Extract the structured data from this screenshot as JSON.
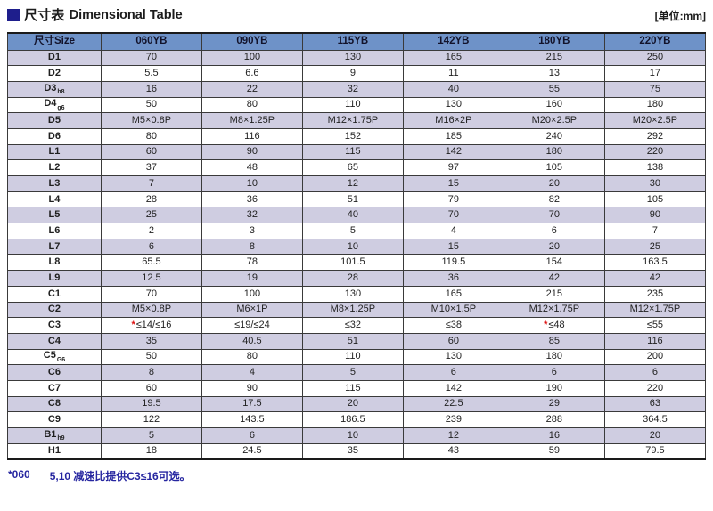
{
  "page": {
    "title_zh": "尺寸表",
    "title_en": "Dimensional Table",
    "unit_label": "[单位:mm]",
    "footnote_marker": "*060",
    "footnote_text": "5,10 减速比提供C3≤16可选。"
  },
  "colors": {
    "header_bg": "#6e92c8",
    "row_alt_bg": "#cfcde1",
    "title_square_navy": "#1e1e8c",
    "footnote_blue": "#2626a0",
    "asterisk_red": "#dd1111"
  },
  "table": {
    "columns": [
      "尺寸Size",
      "060YB",
      "090YB",
      "115YB",
      "142YB",
      "180YB",
      "220YB"
    ],
    "rows": [
      {
        "label": "D1",
        "sub": "",
        "values": [
          "70",
          "100",
          "130",
          "165",
          "215",
          "250"
        ]
      },
      {
        "label": "D2",
        "sub": "",
        "values": [
          "5.5",
          "6.6",
          "9",
          "11",
          "13",
          "17"
        ]
      },
      {
        "label": "D3",
        "sub": "h8",
        "values": [
          "16",
          "22",
          "32",
          "40",
          "55",
          "75"
        ]
      },
      {
        "label": "D4",
        "sub": "g6",
        "values": [
          "50",
          "80",
          "110",
          "130",
          "160",
          "180"
        ]
      },
      {
        "label": "D5",
        "sub": "",
        "values": [
          "M5×0.8P",
          "M8×1.25P",
          "M12×1.75P",
          "M16×2P",
          "M20×2.5P",
          "M20×2.5P"
        ]
      },
      {
        "label": "D6",
        "sub": "",
        "values": [
          "80",
          "116",
          "152",
          "185",
          "240",
          "292"
        ]
      },
      {
        "label": "L1",
        "sub": "",
        "values": [
          "60",
          "90",
          "115",
          "142",
          "180",
          "220"
        ]
      },
      {
        "label": "L2",
        "sub": "",
        "values": [
          "37",
          "48",
          "65",
          "97",
          "105",
          "138"
        ]
      },
      {
        "label": "L3",
        "sub": "",
        "values": [
          "7",
          "10",
          "12",
          "15",
          "20",
          "30"
        ]
      },
      {
        "label": "L4",
        "sub": "",
        "values": [
          "28",
          "36",
          "51",
          "79",
          "82",
          "105"
        ]
      },
      {
        "label": "L5",
        "sub": "",
        "values": [
          "25",
          "32",
          "40",
          "70",
          "70",
          "90"
        ]
      },
      {
        "label": "L6",
        "sub": "",
        "values": [
          "2",
          "3",
          "5",
          "4",
          "6",
          "7"
        ]
      },
      {
        "label": "L7",
        "sub": "",
        "values": [
          "6",
          "8",
          "10",
          "15",
          "20",
          "25"
        ]
      },
      {
        "label": "L8",
        "sub": "",
        "values": [
          "65.5",
          "78",
          "101.5",
          "119.5",
          "154",
          "163.5"
        ]
      },
      {
        "label": "L9",
        "sub": "",
        "values": [
          "12.5",
          "19",
          "28",
          "36",
          "42",
          "42"
        ]
      },
      {
        "label": "C1",
        "sub": "",
        "values": [
          "70",
          "100",
          "130",
          "165",
          "215",
          "235"
        ]
      },
      {
        "label": "C2",
        "sub": "",
        "values": [
          "M5×0.8P",
          "M6×1P",
          "M8×1.25P",
          "M10×1.5P",
          "M12×1.75P",
          "M12×1.75P"
        ]
      },
      {
        "label": "C3",
        "sub": "",
        "values": [
          "*≤14/≤16",
          "≤19/≤24",
          "≤32",
          "≤38",
          "*≤48",
          "≤55"
        ]
      },
      {
        "label": "C4",
        "sub": "",
        "values": [
          "35",
          "40.5",
          "51",
          "60",
          "85",
          "116"
        ]
      },
      {
        "label": "C5",
        "sub": "G6",
        "values": [
          "50",
          "80",
          "110",
          "130",
          "180",
          "200"
        ]
      },
      {
        "label": "C6",
        "sub": "",
        "values": [
          "8",
          "4",
          "5",
          "6",
          "6",
          "6"
        ]
      },
      {
        "label": "C7",
        "sub": "",
        "values": [
          "60",
          "90",
          "115",
          "142",
          "190",
          "220"
        ]
      },
      {
        "label": "C8",
        "sub": "",
        "values": [
          "19.5",
          "17.5",
          "20",
          "22.5",
          "29",
          "63"
        ]
      },
      {
        "label": "C9",
        "sub": "",
        "values": [
          "122",
          "143.5",
          "186.5",
          "239",
          "288",
          "364.5"
        ]
      },
      {
        "label": "B1",
        "sub": "h9",
        "values": [
          "5",
          "6",
          "10",
          "12",
          "16",
          "20"
        ]
      },
      {
        "label": "H1",
        "sub": "",
        "values": [
          "18",
          "24.5",
          "35",
          "43",
          "59",
          "79.5"
        ]
      }
    ]
  }
}
